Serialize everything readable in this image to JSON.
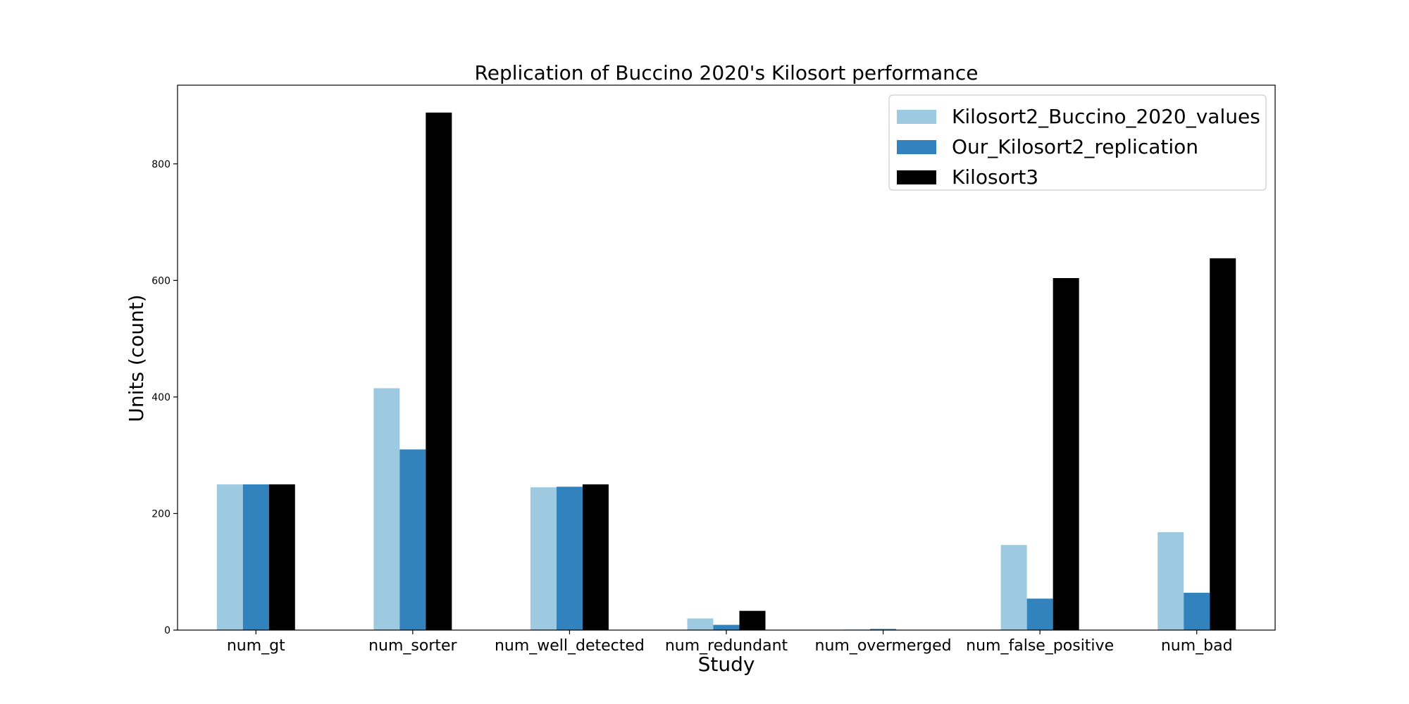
{
  "chart_data": {
    "type": "bar",
    "title": "Replication of Buccino 2020's Kilosort performance",
    "xlabel": "Study",
    "ylabel": "Units (count)",
    "categories": [
      "num_gt",
      "num_sorter",
      "num_well_detected",
      "num_redundant",
      "num_overmerged",
      "num_false_positive",
      "num_bad"
    ],
    "series": [
      {
        "name": "Kilosort2_Buccino_2020_values",
        "color": "#9ecae1",
        "values": [
          250,
          415,
          245,
          20,
          1,
          146,
          168
        ]
      },
      {
        "name": "Our_Kilosort2_replication",
        "color": "#3182bd",
        "values": [
          250,
          310,
          246,
          9,
          2,
          54,
          64
        ]
      },
      {
        "name": "Kilosort3",
        "color": "#000000",
        "values": [
          250,
          888,
          250,
          33,
          0,
          604,
          638
        ]
      }
    ],
    "ylim": [
      0,
      935
    ],
    "yticks": [
      0,
      200,
      400,
      600,
      800
    ],
    "grid": false,
    "legend_position": "top-right"
  }
}
